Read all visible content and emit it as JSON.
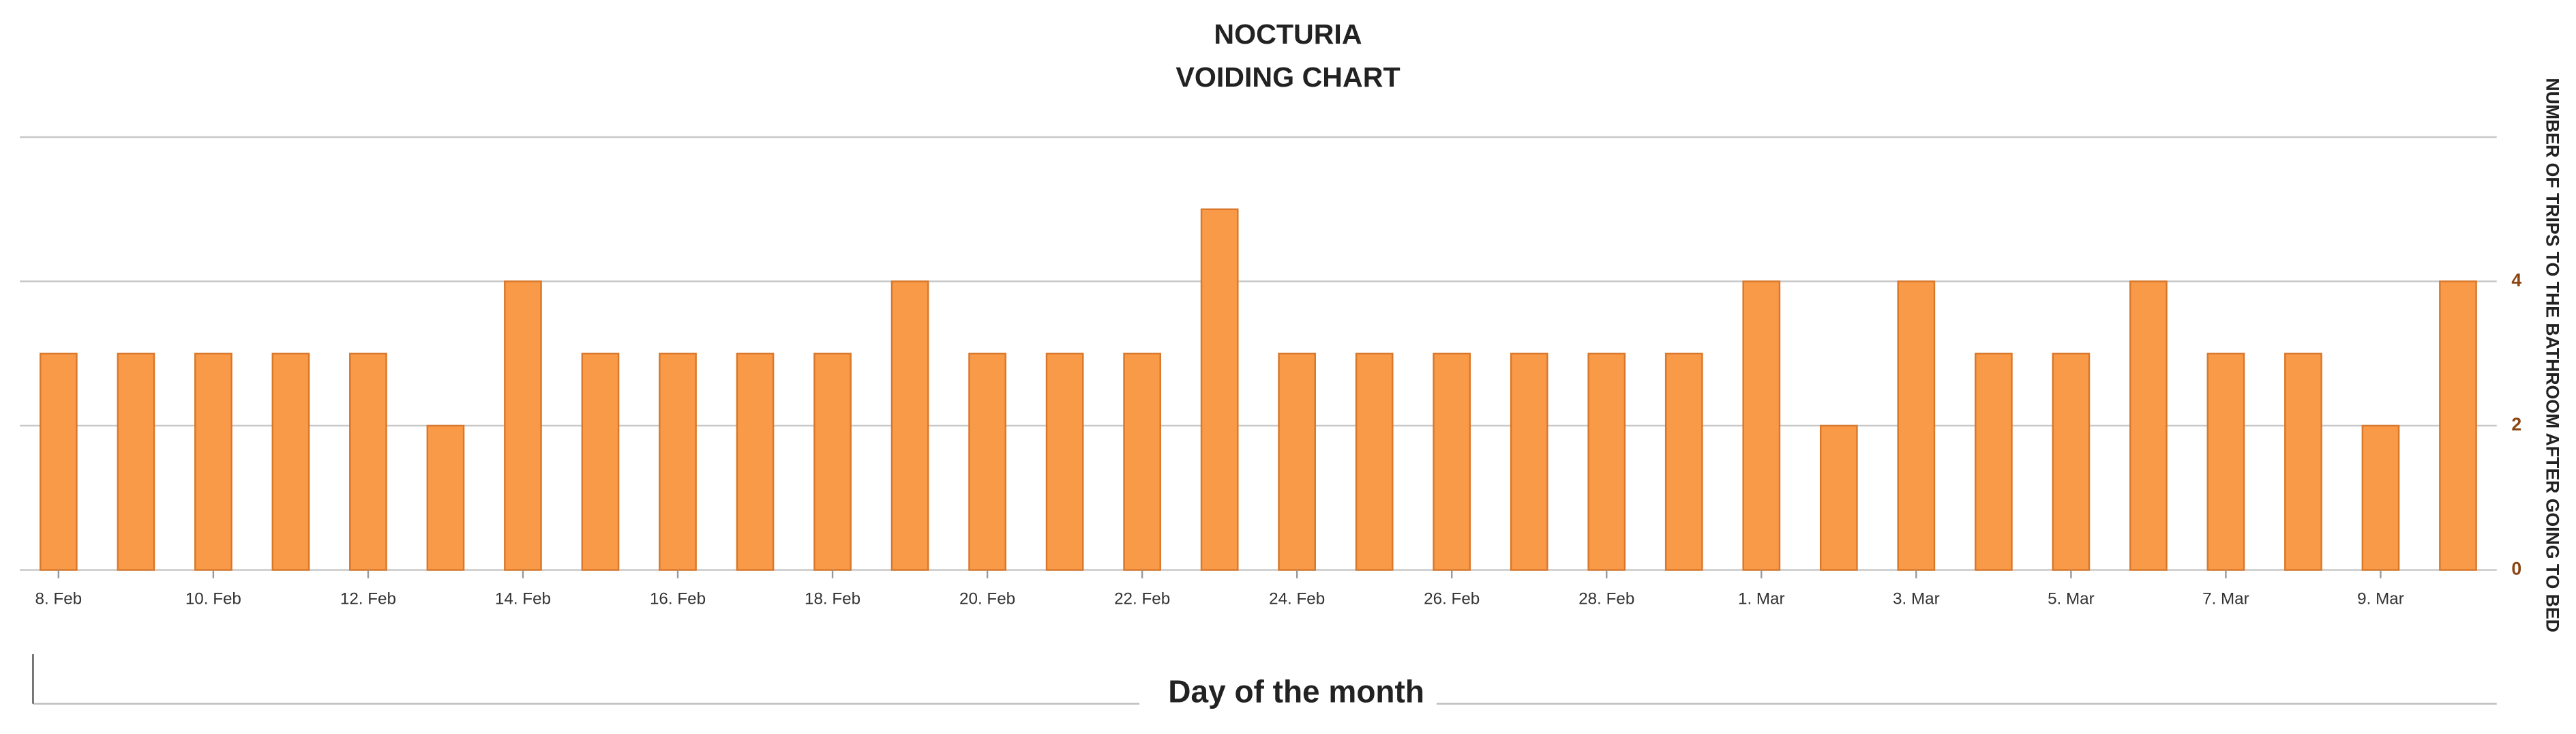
{
  "chart_data": {
    "type": "bar",
    "title": "NOCTURIA",
    "subtitle": "VOIDING CHART",
    "x_label": "Day of the month",
    "y_label": "NUMBER OF TRIPS TO THE BATHROOM AFTER GOING TO BED",
    "categories": [
      "8. Feb",
      null,
      "10. Feb",
      null,
      "12. Feb",
      null,
      "14. Feb",
      null,
      "16. Feb",
      null,
      "18. Feb",
      null,
      "20. Feb",
      null,
      "22. Feb",
      null,
      "24. Feb",
      null,
      "26. Feb",
      null,
      "28. Feb",
      null,
      "1. Mar",
      null,
      "3. Mar",
      null,
      "5. Mar",
      null,
      "7. Mar",
      null,
      "9. Mar",
      null
    ],
    "values": [
      3,
      3,
      3,
      3,
      3,
      2,
      4,
      3,
      3,
      3,
      3,
      4,
      3,
      3,
      3,
      5,
      3,
      3,
      3,
      3,
      3,
      3,
      4,
      2,
      4,
      3,
      3,
      4,
      3,
      3,
      2,
      4
    ],
    "color": "#f99a48",
    "ylim": [
      0,
      6
    ],
    "yticks": [
      0,
      2,
      4
    ],
    "grid": true
  }
}
